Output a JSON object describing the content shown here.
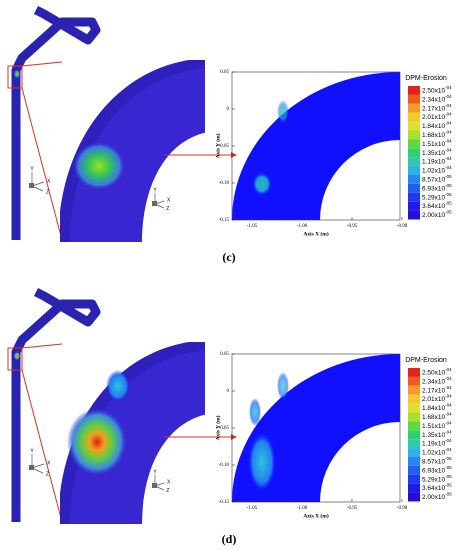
{
  "panels": [
    {
      "label": "(c)",
      "legend": {
        "title": "DPM-Erosion",
        "entries": [
          {
            "base": "2.50x10",
            "exp": "-04"
          },
          {
            "base": "2.34x10",
            "exp": "-04"
          },
          {
            "base": "2.17x10",
            "exp": "-04"
          },
          {
            "base": "2.01x10",
            "exp": "-04"
          },
          {
            "base": "1.84x10",
            "exp": "-04"
          },
          {
            "base": "1.68x10",
            "exp": "-04"
          },
          {
            "base": "1.51x10",
            "exp": "-04"
          },
          {
            "base": "1.35x10",
            "exp": "-04"
          },
          {
            "base": "1.19x10",
            "exp": "-04"
          },
          {
            "base": "1.02x10",
            "exp": "-04"
          },
          {
            "base": "8.57x10",
            "exp": "-05"
          },
          {
            "base": "6.93x10",
            "exp": "-05"
          },
          {
            "base": "5.29x10",
            "exp": "-05"
          },
          {
            "base": "3.64x10",
            "exp": "-05"
          },
          {
            "base": "2.00x10",
            "exp": "-05"
          }
        ]
      },
      "x_axis_label": "Axis X (m)",
      "y_axis_label": "Axis Y (m)",
      "x_ticks": [
        "-1.05",
        "-1.00",
        "-0.95",
        "-0.90"
      ],
      "y_ticks": [
        "0.05",
        "0",
        "-0.05",
        "-0.10",
        "-0.15"
      ],
      "triad": [
        "Y",
        "X",
        "Z"
      ]
    },
    {
      "label": "(d)",
      "legend": {
        "title": "DPM-Erosion",
        "entries": [
          {
            "base": "2.50x10",
            "exp": "-04"
          },
          {
            "base": "2.34x10",
            "exp": "-04"
          },
          {
            "base": "2.17x10",
            "exp": "-04"
          },
          {
            "base": "2.01x10",
            "exp": "-04"
          },
          {
            "base": "1.84x10",
            "exp": "-04"
          },
          {
            "base": "1.68x10",
            "exp": "-04"
          },
          {
            "base": "1.51x10",
            "exp": "-04"
          },
          {
            "base": "1.35x10",
            "exp": "-04"
          },
          {
            "base": "1.19x10",
            "exp": "-04"
          },
          {
            "base": "1.02x10",
            "exp": "-04"
          },
          {
            "base": "8.57x10",
            "exp": "-05"
          },
          {
            "base": "6.93x10",
            "exp": "-05"
          },
          {
            "base": "5.29x10",
            "exp": "-05"
          },
          {
            "base": "3.64x10",
            "exp": "-05"
          },
          {
            "base": "2.00x10",
            "exp": "-05"
          }
        ]
      },
      "x_axis_label": "Axis X (m)",
      "y_axis_label": "Axis Y (m)",
      "x_ticks": [
        "-1.05",
        "-1.00",
        "-0.95",
        "-0.90"
      ],
      "y_ticks": [
        "0.05",
        "0",
        "-0.05",
        "-0.10",
        "-0.15"
      ],
      "triad": [
        "Y",
        "X",
        "Z"
      ]
    }
  ]
}
